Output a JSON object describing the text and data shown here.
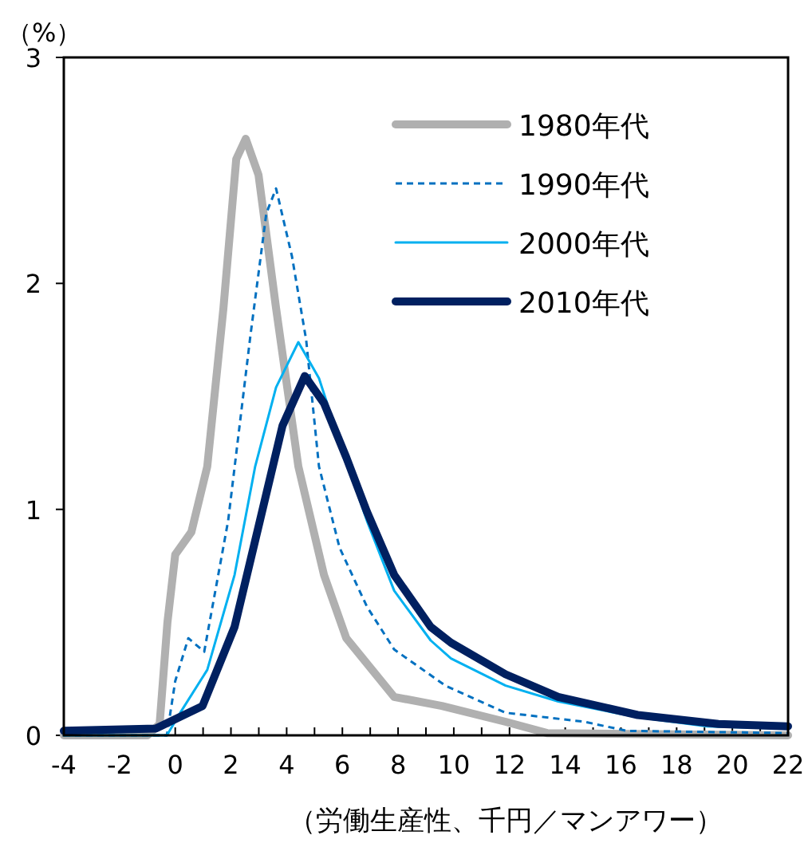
{
  "chart_data": {
    "type": "line",
    "ylabel": "（%）",
    "xlabel": "（労働生産性、千円／マンアワー）",
    "xlim": [
      -4,
      22
    ],
    "ylim": [
      0,
      3
    ],
    "xticks": [
      -4,
      {
        "value": -3,
        "label": null
      },
      -2,
      {
        "value": -1,
        "label": null
      },
      0,
      {
        "value": 1,
        "label": null
      },
      2,
      {
        "value": 3,
        "label": null
      },
      4,
      {
        "value": 5,
        "label": null
      },
      6,
      {
        "value": 7,
        "label": null
      },
      8,
      {
        "value": 9,
        "label": null
      },
      10,
      {
        "value": 11,
        "label": null
      },
      12,
      {
        "value": 13,
        "label": null
      },
      14,
      {
        "value": 15,
        "label": null
      },
      16,
      {
        "value": 17,
        "label": null
      },
      18,
      {
        "value": 19,
        "label": null
      },
      20,
      {
        "value": 21,
        "label": null
      },
      22
    ],
    "yticks": [
      0,
      1,
      2,
      3
    ],
    "legend": "top right",
    "grid": false,
    "marker": "none",
    "series": [
      {
        "name": "1980年代",
        "color": "#b0b0b0",
        "line_style": "solid",
        "x": [
          -4,
          -1,
          -0.56,
          -0.28,
          0,
          0.58,
          1.15,
          1.73,
          2.19,
          2.53,
          2.99,
          3.62,
          4.42,
          5.34,
          6.14,
          7.86,
          9.57,
          11.86,
          13.35,
          22
        ],
        "values": [
          0,
          0,
          0.05,
          0.5,
          0.8,
          0.9,
          1.19,
          1.89,
          2.55,
          2.64,
          2.48,
          1.89,
          1.19,
          0.71,
          0.43,
          0.17,
          0.13,
          0.06,
          0.01,
          0
        ]
      },
      {
        "name": "1990年代",
        "color": "#0070c0",
        "line_style": "dashed",
        "x": [
          -4,
          -0.3,
          0,
          0.47,
          1.04,
          1.9,
          2.7,
          3.27,
          3.62,
          4.19,
          4.7,
          5.16,
          5.9,
          6.88,
          7.86,
          9.7,
          11.86,
          14.7,
          16.2,
          22
        ],
        "values": [
          0,
          0,
          0.24,
          0.43,
          0.37,
          0.95,
          1.77,
          2.31,
          2.42,
          2.12,
          1.75,
          1.19,
          0.83,
          0.57,
          0.38,
          0.22,
          0.1,
          0.06,
          0.02,
          0.01
        ]
      },
      {
        "name": "2000年代",
        "color": "#00b0f0",
        "line_style": "solid",
        "x": [
          -4,
          -0.3,
          0.18,
          1.15,
          2.13,
          2.87,
          3.62,
          4.42,
          5.16,
          5.9,
          6.88,
          7.86,
          9.17,
          9.9,
          11.86,
          13.75,
          16.6,
          19.1,
          22
        ],
        "values": [
          0,
          0,
          0.1,
          0.29,
          0.71,
          1.19,
          1.54,
          1.74,
          1.58,
          1.3,
          0.95,
          0.64,
          0.42,
          0.34,
          0.22,
          0.15,
          0.08,
          0.04,
          0.03
        ]
      },
      {
        "name": "2010年代",
        "color": "#002060",
        "line_style": "solid",
        "x": [
          -4,
          -0.7,
          0.98,
          2.13,
          3.04,
          3.85,
          4.65,
          5.34,
          6.14,
          6.88,
          7.86,
          9.17,
          9.9,
          11.86,
          13.75,
          16.6,
          19.5,
          22
        ],
        "values": [
          0.02,
          0.03,
          0.13,
          0.48,
          0.95,
          1.37,
          1.59,
          1.47,
          1.23,
          0.99,
          0.71,
          0.48,
          0.41,
          0.27,
          0.17,
          0.09,
          0.05,
          0.04
        ]
      }
    ]
  }
}
